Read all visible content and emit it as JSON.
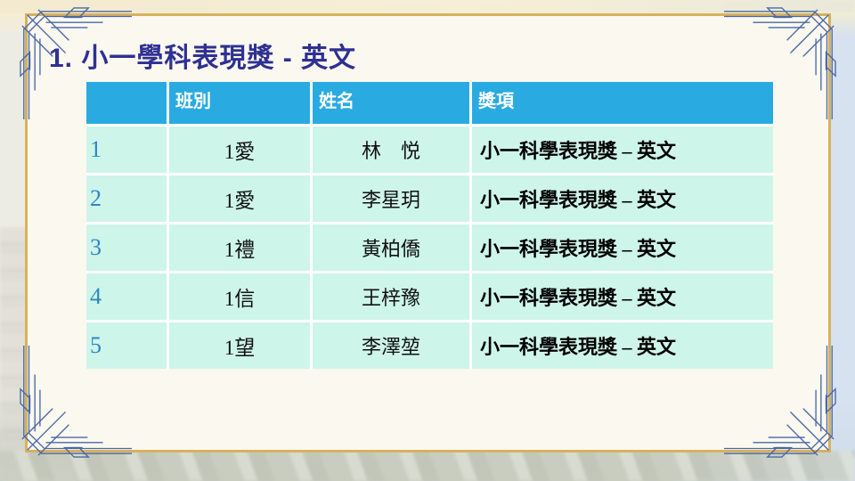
{
  "slide": {
    "title": "1. 小一學科表現獎 - 英文"
  },
  "table": {
    "headers": [
      "",
      "班別",
      "姓名",
      "獎項"
    ],
    "rows": [
      {
        "num": "1",
        "class_name": "1愛",
        "student": "林　悦",
        "award": "小一科學表現獎 – 英文"
      },
      {
        "num": "2",
        "class_name": "1愛",
        "student": "李星玥",
        "award": "小一科學表現獎 – 英文"
      },
      {
        "num": "3",
        "class_name": "1禮",
        "student": "黃柏僑",
        "award": "小一科學表現獎 – 英文"
      },
      {
        "num": "4",
        "class_name": "1信",
        "student": "王梓豫",
        "award": "小一科學表現獎 – 英文"
      },
      {
        "num": "5",
        "class_name": "1望",
        "student": "李澤堃",
        "award": "小一科學表現獎 – 英文"
      }
    ]
  },
  "colors": {
    "header_bg": "#29ABE2",
    "row_bg": "#CEF5E9",
    "title": "#2E3192",
    "row_number": "#2E86C8",
    "frame_gold": "#D6B25E",
    "ornament_blue": "#4A68A6"
  }
}
